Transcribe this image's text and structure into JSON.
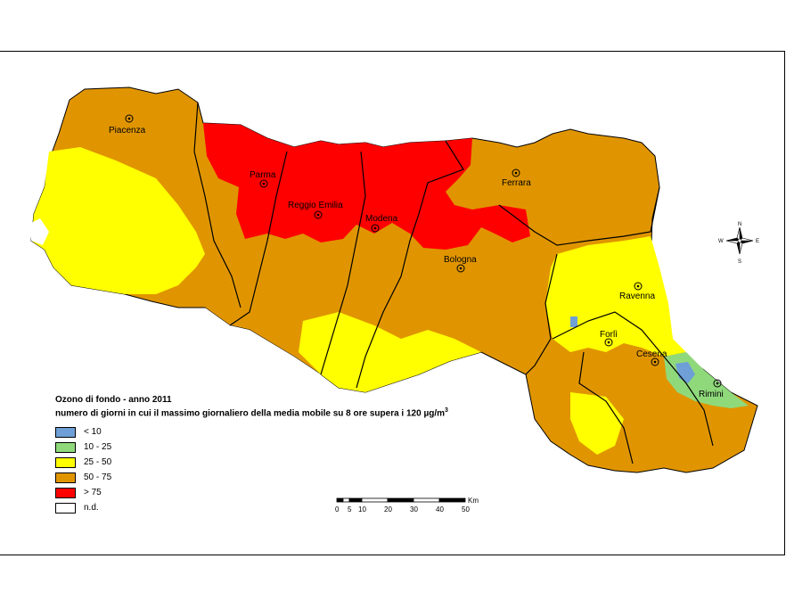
{
  "legend": {
    "title_line1": "Ozono di fondo - anno 2011",
    "title_line2": "numero di giorni in cui il massimo giornaliero della media mobile su 8 ore supera i 120 µg/m",
    "title_superscript": "3",
    "classes": [
      {
        "label": "< 10",
        "color": "#6e9fd6"
      },
      {
        "label": "10 - 25",
        "color": "#8fd97b"
      },
      {
        "label": "25 - 50",
        "color": "#ffff00"
      },
      {
        "label": "50 - 75",
        "color": "#e09500"
      },
      {
        "label": "> 75",
        "color": "#ff0000"
      },
      {
        "label": "n.d.",
        "color": "#ffffff"
      }
    ]
  },
  "cities": [
    {
      "name": "Piacenza"
    },
    {
      "name": "Parma"
    },
    {
      "name": "Reggio Emilia"
    },
    {
      "name": "Modena"
    },
    {
      "name": "Ferrara"
    },
    {
      "name": "Bologna"
    },
    {
      "name": "Ravenna"
    },
    {
      "name": "Forlì"
    },
    {
      "name": "Cesena"
    },
    {
      "name": "Rimini"
    }
  ],
  "scalebar": {
    "ticks": [
      "0",
      "5",
      "10",
      "20",
      "30",
      "40",
      "50"
    ],
    "unit": "Km"
  },
  "compass": {
    "n": "N",
    "s": "S",
    "e": "E",
    "w": "W"
  }
}
